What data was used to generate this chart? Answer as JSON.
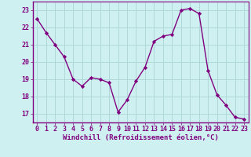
{
  "x": [
    0,
    1,
    2,
    3,
    4,
    5,
    6,
    7,
    8,
    9,
    10,
    11,
    12,
    13,
    14,
    15,
    16,
    17,
    18,
    19,
    20,
    21,
    22,
    23
  ],
  "y": [
    22.5,
    21.7,
    21.0,
    20.3,
    19.0,
    18.6,
    19.1,
    19.0,
    18.8,
    17.1,
    17.8,
    18.9,
    19.7,
    21.2,
    21.5,
    21.6,
    23.0,
    23.1,
    22.8,
    19.5,
    18.1,
    17.5,
    16.8,
    16.7
  ],
  "line_color": "#800080",
  "marker": "D",
  "marker_size": 2.2,
  "bg_color": "#cff0f0",
  "grid_color": "#b0d8d8",
  "xlabel": "Windchill (Refroidissement éolien,°C)",
  "xlabel_fontsize": 6.5,
  "yticks": [
    17,
    18,
    19,
    20,
    21,
    22,
    23
  ],
  "xticks": [
    0,
    1,
    2,
    3,
    4,
    5,
    6,
    7,
    8,
    9,
    10,
    11,
    12,
    13,
    14,
    15,
    16,
    17,
    18,
    19,
    20,
    21,
    22,
    23
  ],
  "ylim": [
    16.5,
    23.5
  ],
  "xlim": [
    -0.5,
    23.5
  ],
  "tick_fontsize": 6.0,
  "tick_color": "#800080",
  "spine_color": "#800080",
  "linewidth": 1.0
}
